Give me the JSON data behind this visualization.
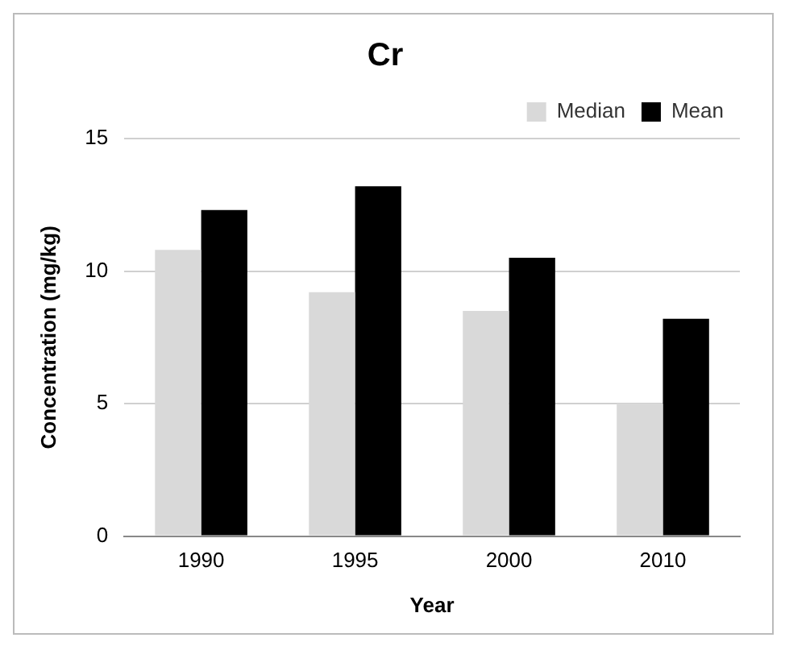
{
  "chart_data": {
    "type": "bar",
    "title": "Cr",
    "xlabel": "Year",
    "ylabel": "Concentration (mg/kg)",
    "categories": [
      "1990",
      "1995",
      "2000",
      "2010"
    ],
    "series": [
      {
        "name": "Median",
        "color": "#d9d9d9",
        "values": [
          10.8,
          9.2,
          8.5,
          5.0
        ]
      },
      {
        "name": "Mean",
        "color": "#000000",
        "values": [
          12.3,
          13.2,
          10.5,
          8.2
        ]
      }
    ],
    "ylim": [
      0,
      15
    ],
    "yticks": [
      0,
      5,
      10,
      15
    ],
    "grid": "y",
    "legend": "top right"
  }
}
